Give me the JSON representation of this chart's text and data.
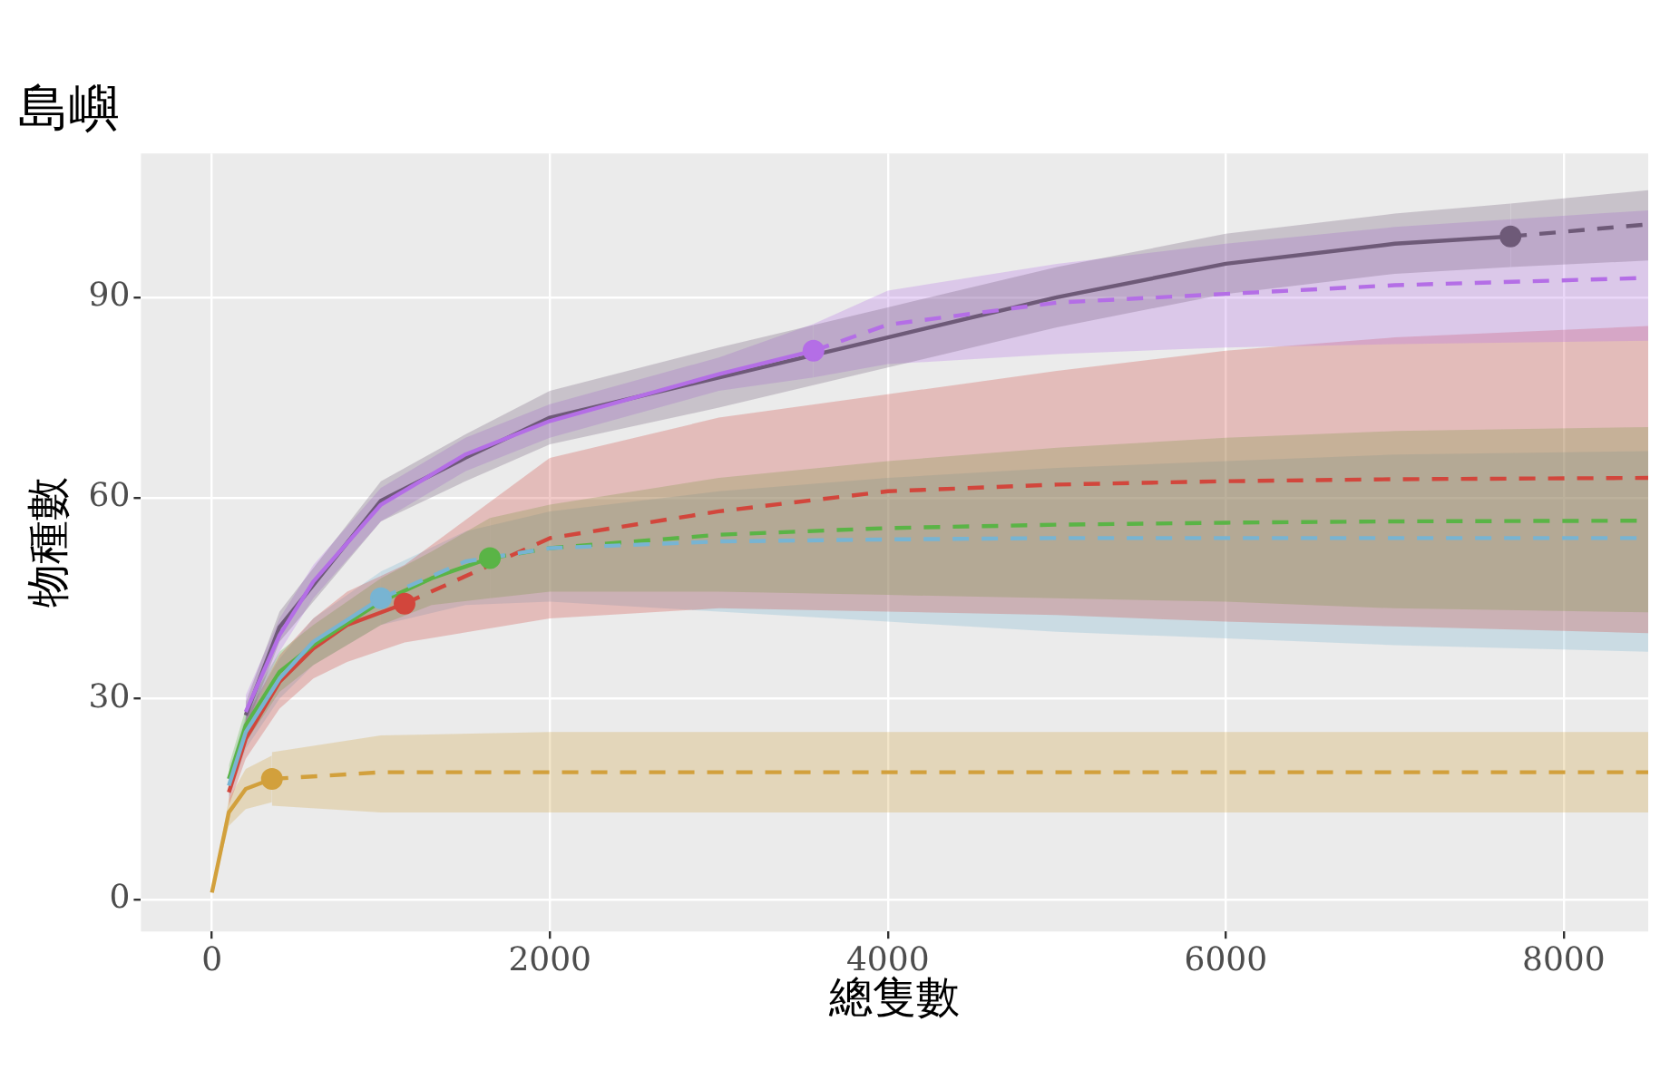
{
  "chart_data": {
    "type": "line",
    "title": "島嶼",
    "xlabel": "總隻數",
    "ylabel": "物種數",
    "xlim": [
      -420,
      8500
    ],
    "xticks": [
      0,
      2000,
      4000,
      6000,
      8000
    ],
    "ylim": [
      -4.8,
      111.5
    ],
    "yticks": [
      0,
      30,
      60,
      90
    ],
    "grid": true,
    "legend": false,
    "series": [
      {
        "color": "#6e5a78",
        "line_style": "solid",
        "x": [
          200,
          400,
          600,
          1000,
          1500,
          2000,
          3000,
          4000,
          5000,
          6000,
          7000,
          7685
        ],
        "values": [
          27.5,
          40.7,
          47,
          59.6,
          66,
          72,
          78,
          84,
          90,
          95,
          98,
          99.1
        ],
        "lower": [
          25.5,
          38.5,
          44.5,
          56.5,
          62.5,
          68,
          73.5,
          79.5,
          85.5,
          90.5,
          93.5,
          94.5
        ],
        "upper": [
          29.5,
          43,
          49.5,
          62.5,
          69.5,
          76,
          82.5,
          88.5,
          94.5,
          99.5,
          102.5,
          104
        ]
      },
      {
        "color": "#6e5a78",
        "line_style": "dashed",
        "x": [
          7685,
          8500
        ],
        "values": [
          99.1,
          100.9
        ],
        "lower": [
          94.5,
          95.5
        ],
        "upper": [
          104,
          106
        ]
      },
      {
        "color": "#b46ee6",
        "line_style": "solid",
        "x": [
          200,
          400,
          600,
          1000,
          1500,
          2000,
          3000,
          3560
        ],
        "values": [
          28,
          39.5,
          47.5,
          59,
          66.5,
          71.5,
          78.5,
          82
        ],
        "lower": [
          25.5,
          37,
          45,
          56.5,
          64,
          69,
          76,
          78
        ],
        "upper": [
          30.5,
          42,
          50,
          61.5,
          69,
          74,
          81,
          86
        ]
      },
      {
        "color": "#b46ee6",
        "line_style": "dashed",
        "x": [
          3560,
          4000,
          5000,
          6000,
          7000,
          8500
        ],
        "values": [
          82,
          85.9,
          89.2,
          90.5,
          91.8,
          92.9
        ],
        "lower": [
          78,
          80,
          81.5,
          82.5,
          83,
          83.5
        ],
        "upper": [
          86,
          91,
          95,
          98,
          100.5,
          103
        ]
      },
      {
        "color": "#d2463c",
        "line_style": "solid",
        "x": [
          100,
          200,
          400,
          600,
          800,
          1140
        ],
        "values": [
          16,
          24,
          32.5,
          37.5,
          41,
          44.2
        ],
        "lower": [
          14,
          21,
          28.5,
          33,
          35.5,
          38.4
        ],
        "upper": [
          18,
          27,
          36.5,
          42,
          46,
          50
        ]
      },
      {
        "color": "#d2463c",
        "line_style": "dashed",
        "x": [
          1140,
          2000,
          3000,
          4000,
          5000,
          6000,
          7000,
          8500
        ],
        "values": [
          44.2,
          54,
          58,
          61,
          62,
          62.5,
          62.8,
          63
        ],
        "lower": [
          38.4,
          42,
          43.5,
          43,
          42.5,
          41.5,
          40.8,
          39.8
        ],
        "upper": [
          50,
          66,
          72,
          75.5,
          79,
          82,
          84,
          85.7
        ]
      },
      {
        "color": "#5ab446",
        "line_style": "solid",
        "x": [
          100,
          200,
          400,
          600,
          1000,
          1300,
          1645
        ],
        "values": [
          18,
          26,
          34,
          38,
          44.5,
          48,
          51
        ],
        "lower": [
          16,
          23.5,
          31,
          35,
          41,
          44,
          45
        ],
        "upper": [
          20,
          28.5,
          37,
          41,
          48,
          52,
          57
        ]
      },
      {
        "color": "#5ab446",
        "line_style": "dashed",
        "x": [
          1645,
          2000,
          3000,
          4000,
          5000,
          6000,
          7000,
          8500
        ],
        "values": [
          51,
          52.5,
          54.5,
          55.5,
          56,
          56.3,
          56.5,
          56.6
        ],
        "lower": [
          45,
          46,
          46,
          45.5,
          45,
          44.5,
          43.5,
          42.9
        ],
        "upper": [
          57,
          59,
          63,
          65.5,
          67.5,
          69,
          70,
          70.6
        ]
      },
      {
        "color": "#78b4d2",
        "line_style": "solid",
        "x": [
          100,
          200,
          400,
          600,
          1000
        ],
        "values": [
          17,
          25,
          33,
          38.5,
          45
        ],
        "lower": [
          15,
          22.5,
          30,
          35,
          41
        ],
        "upper": [
          19,
          27.5,
          36,
          42,
          49
        ]
      },
      {
        "color": "#78b4d2",
        "line_style": "dashed",
        "x": [
          1000,
          1500,
          2000,
          3000,
          4000,
          5000,
          6000,
          7000,
          8500
        ],
        "values": [
          45,
          50.5,
          52.5,
          53.5,
          53.8,
          54,
          54,
          54,
          54
        ],
        "lower": [
          41,
          44,
          44.5,
          43,
          41.5,
          40,
          39,
          38,
          37
        ],
        "upper": [
          49,
          55,
          58,
          61,
          63,
          64.5,
          65.5,
          66.5,
          67
        ]
      },
      {
        "color": "#d2a03c",
        "line_style": "solid",
        "x": [
          0,
          100,
          200,
          355
        ],
        "values": [
          1,
          13,
          16.5,
          18
        ],
        "lower": [
          1,
          11,
          13.5,
          14.5
        ],
        "upper": [
          1,
          15,
          19.5,
          21.5
        ]
      },
      {
        "color": "#d2a03c",
        "line_style": "dashed",
        "x": [
          355,
          1000,
          2000,
          4000,
          8500
        ],
        "values": [
          18,
          19,
          19,
          19,
          19
        ],
        "lower": [
          14,
          13,
          13,
          13,
          13
        ],
        "upper": [
          22,
          24.5,
          25,
          25,
          25
        ]
      },
      {
        "type": "scatter",
        "marker": "circle",
        "x": [
          7685,
          3560,
          1140,
          1645,
          1000,
          355
        ],
        "values": [
          99.1,
          82,
          44.2,
          51,
          45,
          18
        ],
        "colors": [
          "#6e5a78",
          "#b46ee6",
          "#d2463c",
          "#5ab446",
          "#78b4d2",
          "#d2a03c"
        ]
      }
    ]
  }
}
